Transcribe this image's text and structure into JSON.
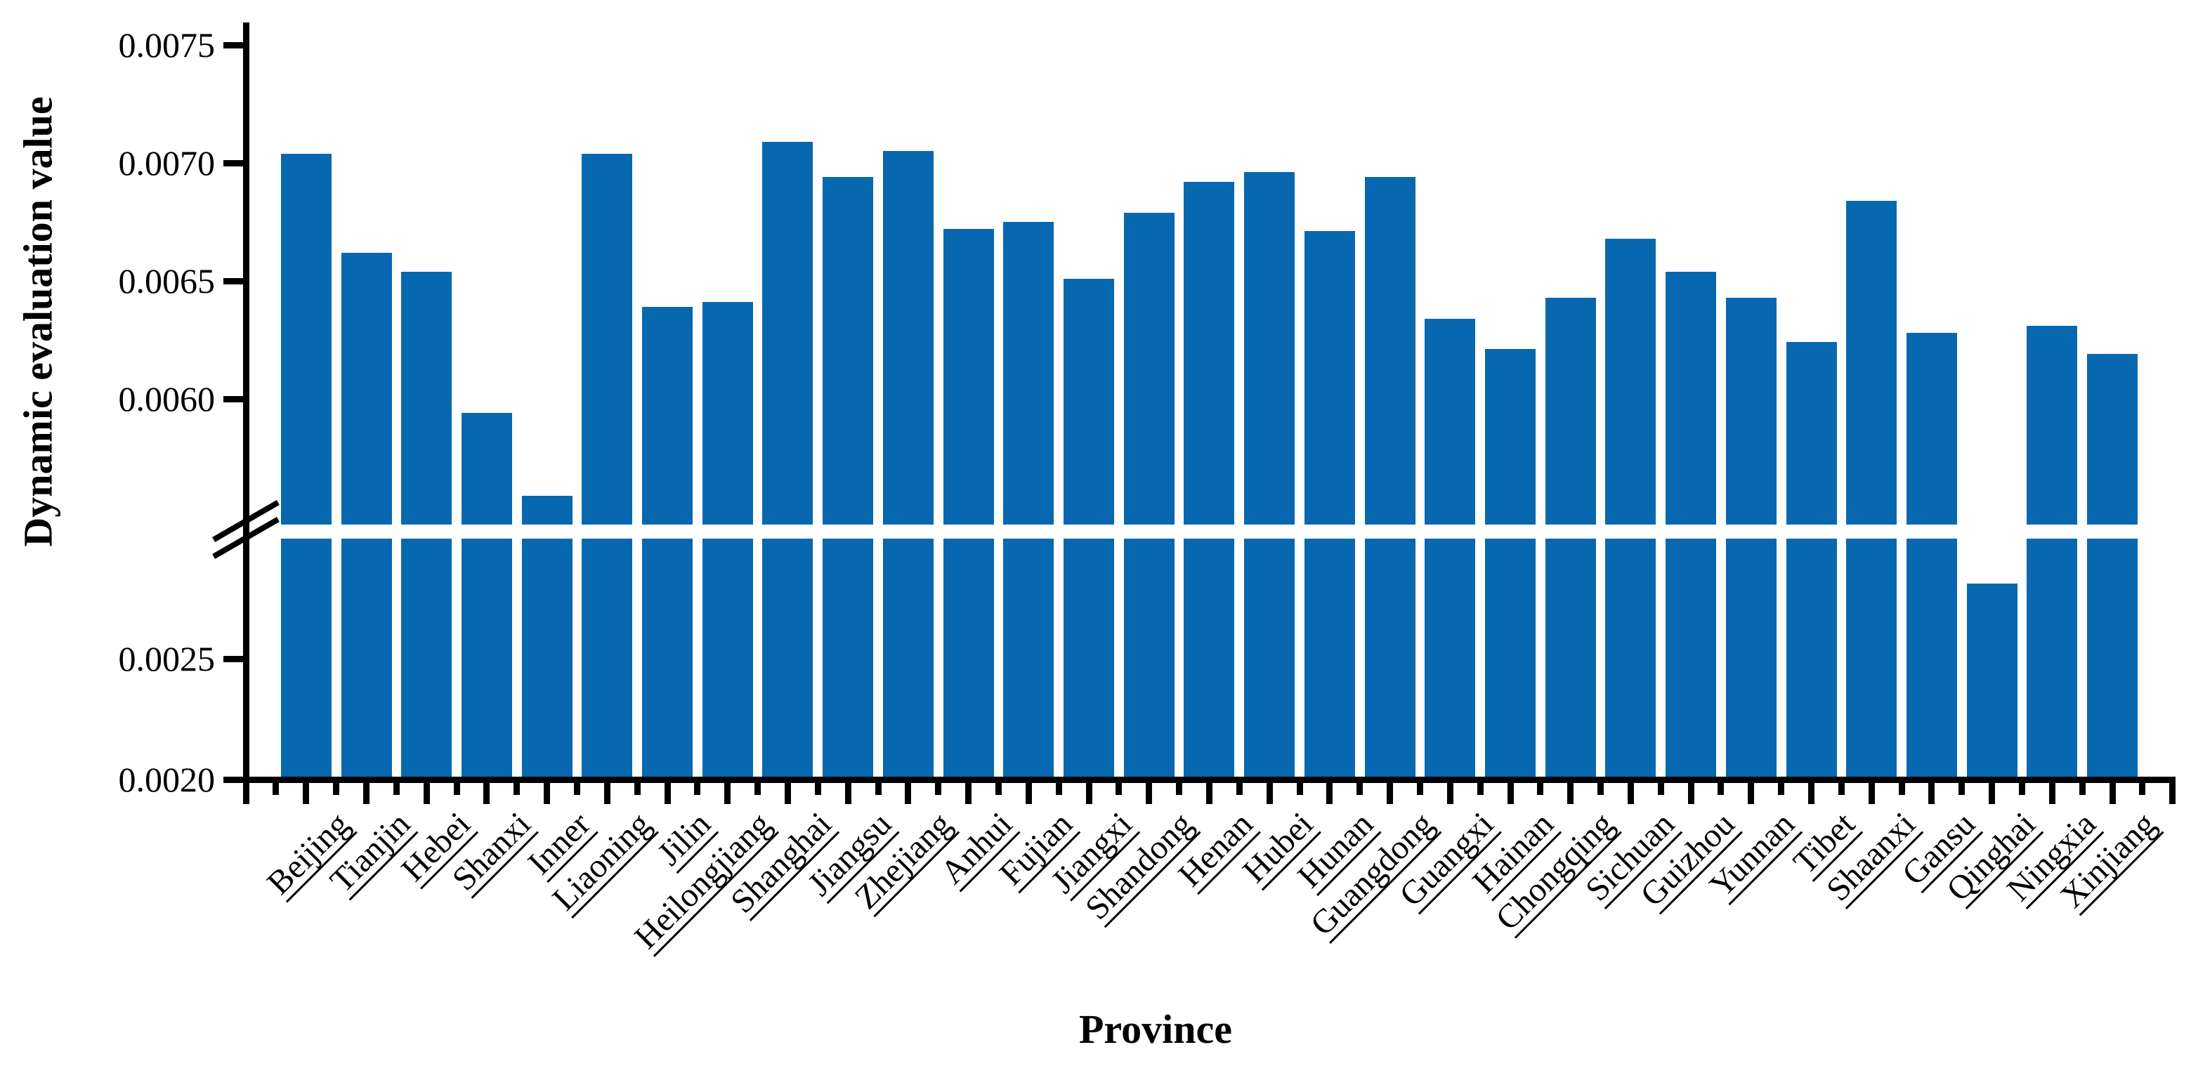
{
  "chart_data": {
    "type": "bar",
    "title": "",
    "xlabel": "Province",
    "ylabel": "Dynamic evaluation value",
    "categories": [
      "Beijing",
      "Tianjin",
      "Hebei",
      "Shanxi",
      "Inner",
      "Liaoning",
      "Jilin",
      "Heilongjiang",
      "Shanghai",
      "Jiangsu",
      "Zhejiang",
      "Anhui",
      "Fujian",
      "Jiangxi",
      "Shandong",
      "Henan",
      "Hubei",
      "Hunan",
      "Guangdong",
      "Guangxi",
      "Hainan",
      "Chongqing",
      "Sichuan",
      "Guizhou",
      "Yunnan",
      "Tibet",
      "Shaanxi",
      "Gansu",
      "Qinghai",
      "Ningxia",
      "Xinjiang"
    ],
    "values": [
      0.00704,
      0.00662,
      0.00654,
      0.00594,
      0.00559,
      0.00704,
      0.00639,
      0.00641,
      0.00709,
      0.00694,
      0.00705,
      0.00672,
      0.00675,
      0.00651,
      0.00679,
      0.00692,
      0.00696,
      0.00671,
      0.00694,
      0.00634,
      0.00621,
      0.00643,
      0.00668,
      0.00654,
      0.00643,
      0.00624,
      0.00684,
      0.00628,
      0.00281,
      0.00631,
      0.00619
    ],
    "bar_color": "#0768b0",
    "axis_color": "#000000",
    "grid": "off",
    "legend": "none",
    "axis_break": {
      "lower_segment_max": 0.003,
      "upper_segment_min": 0.00547
    },
    "y_ticks_upper": [
      {
        "label": "0.0075",
        "value": 0.0075
      },
      {
        "label": "0.0070",
        "value": 0.007
      },
      {
        "label": "0.0065",
        "value": 0.0065
      },
      {
        "label": "0.0060",
        "value": 0.006
      }
    ],
    "y_ticks_lower": [
      {
        "label": "0.0025",
        "value": 0.0025
      },
      {
        "label": "0.0020",
        "value": 0.002
      }
    ],
    "ylim_upper": [
      0.00547,
      0.0075
    ],
    "ylim_lower": [
      0.002,
      0.003
    ]
  }
}
